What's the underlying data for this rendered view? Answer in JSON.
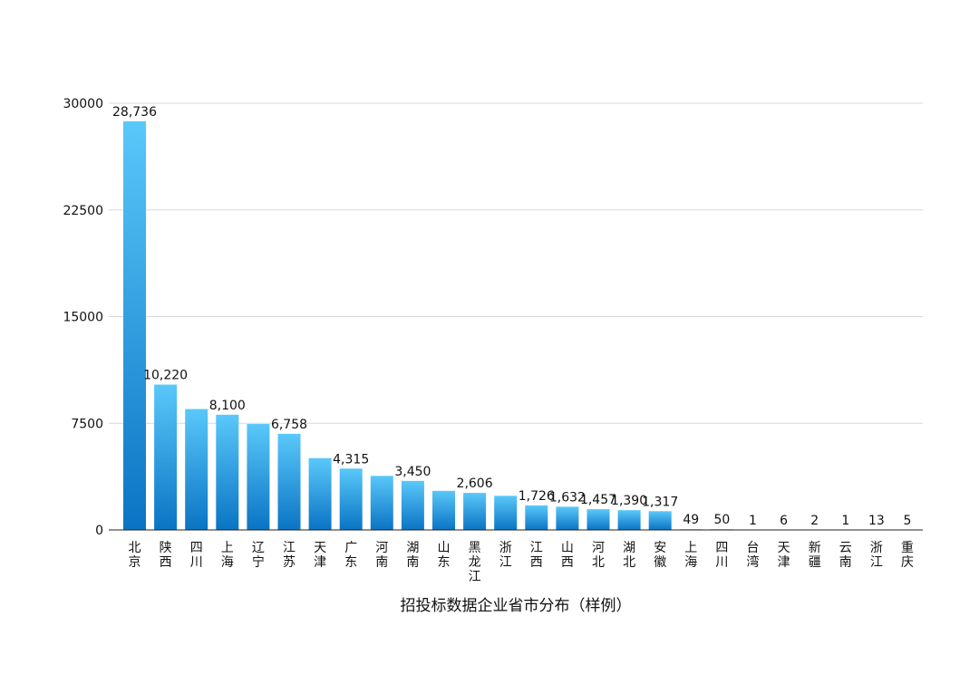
{
  "chart_data": {
    "type": "bar",
    "xlabel": "招投标数据企业省市分布（样例）",
    "ylabel": "",
    "ylim": [
      0,
      30000
    ],
    "yticks": [
      "0",
      "7500",
      "15000",
      "22500",
      "30000"
    ],
    "grid": true,
    "categories": [
      "北京",
      "陕西",
      "四川",
      "上海",
      "辽宁",
      "江苏",
      "天津",
      "广东",
      "河南",
      "湖南",
      "山东",
      "黑龙江",
      "浙江",
      "江西",
      "山西",
      "河北",
      "湖北",
      "安徽",
      "上海",
      "四川",
      "台湾",
      "天津",
      "新疆",
      "云南",
      "浙江",
      "重庆"
    ],
    "values": [
      28736,
      10220,
      8500,
      8100,
      7450,
      6758,
      5050,
      4315,
      3800,
      3450,
      2750,
      2606,
      2400,
      1726,
      1632,
      1457,
      1390,
      1317,
      49,
      50,
      1,
      6,
      2,
      1,
      13,
      5
    ],
    "labels": [
      "28,736",
      "10,220",
      "",
      "8,100",
      "",
      "6,758",
      "",
      "4,315",
      "",
      "3,450",
      "",
      "2,606",
      "",
      "1,726",
      "1,632",
      "1,457",
      "1,390",
      "1,317",
      "49",
      "50",
      "1",
      "6",
      "2",
      "1",
      "13",
      "5"
    ],
    "colors": {
      "bar_top": "#5ac8fa",
      "bar_bottom": "#0a74c4",
      "grid": "#d9d9d9",
      "axis": "#222222"
    }
  }
}
